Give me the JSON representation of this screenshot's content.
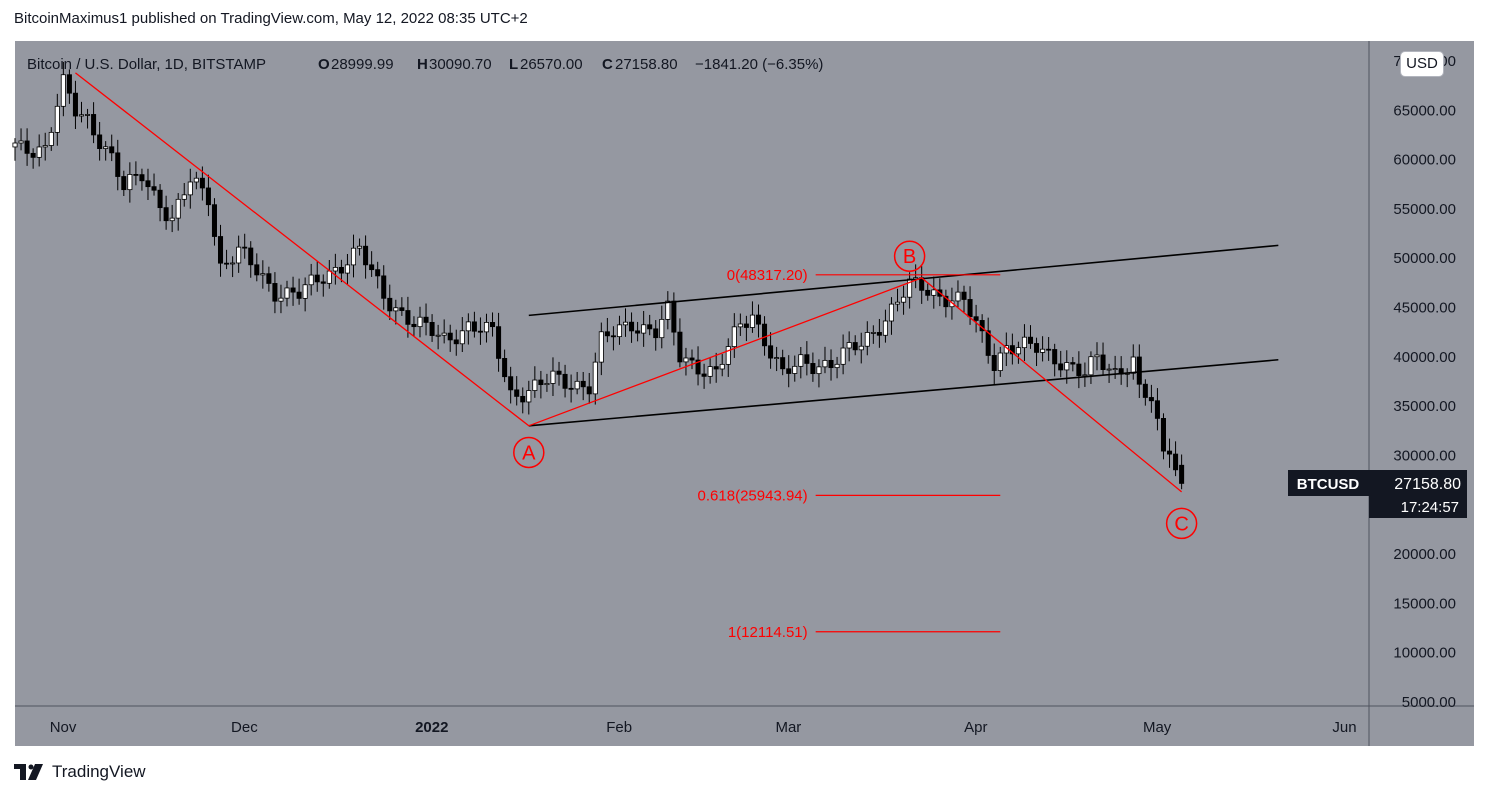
{
  "header": {
    "text": "BitcoinMaximus1 published on TradingView.com, May 12, 2022 08:35 UTC+2"
  },
  "legend": {
    "symbol": "Bitcoin / U.S. Dollar, 1D, BITSTAMP",
    "o_label": "O",
    "o": "28999.99",
    "h_label": "H",
    "h": "30090.70",
    "l_label": "L",
    "l": "26570.00",
    "c_label": "C",
    "c": "27158.80",
    "change": "−1841.20 (−6.35%)"
  },
  "currency_button": "USD",
  "footer": {
    "brand": "TradingView"
  },
  "colors": {
    "background": "#9598a1",
    "up": "#ffffff",
    "down": "#000000",
    "annotation": "#ff0000",
    "channel": "#000000",
    "axis_text": "#131722"
  },
  "chart_data": {
    "type": "candlestick",
    "symbol": "BTCUSD",
    "interval": "1D",
    "last_price": "27158.80",
    "countdown": "17:24:57",
    "y_ticks": [
      "70000.00",
      "65000.00",
      "60000.00",
      "55000.00",
      "50000.00",
      "45000.00",
      "40000.00",
      "35000.00",
      "30000.00",
      "25000.00",
      "20000.00",
      "15000.00",
      "10000.00",
      "5000.00"
    ],
    "ylim": [
      5000,
      70000
    ],
    "x_ticks": [
      {
        "label": "Nov",
        "date": "2021-11-01",
        "bold": false
      },
      {
        "label": "Dec",
        "date": "2021-12-01",
        "bold": false
      },
      {
        "label": "2022",
        "date": "2022-01-01",
        "bold": true
      },
      {
        "label": "Feb",
        "date": "2022-02-01",
        "bold": false
      },
      {
        "label": "Mar",
        "date": "2022-03-01",
        "bold": false
      },
      {
        "label": "Apr",
        "date": "2022-04-01",
        "bold": false
      },
      {
        "label": "May",
        "date": "2022-05-01",
        "bold": false
      },
      {
        "label": "Jun",
        "date": "2022-06-01",
        "bold": false
      }
    ],
    "xlim": [
      "2021-10-31",
      "2022-06-12"
    ],
    "price_waypoints": [
      {
        "date": "2021-10-31",
        "price": 61300
      },
      {
        "date": "2021-11-05",
        "price": 61200
      },
      {
        "date": "2021-11-08",
        "price": 67500
      },
      {
        "date": "2021-11-10",
        "price": 64900
      },
      {
        "date": "2021-11-12",
        "price": 64200
      },
      {
        "date": "2021-11-16",
        "price": 60100
      },
      {
        "date": "2021-11-18",
        "price": 56900
      },
      {
        "date": "2021-11-21",
        "price": 58600
      },
      {
        "date": "2021-11-26",
        "price": 53700
      },
      {
        "date": "2021-11-29",
        "price": 57800
      },
      {
        "date": "2021-12-02",
        "price": 56400
      },
      {
        "date": "2021-12-04",
        "price": 49200
      },
      {
        "date": "2021-12-07",
        "price": 50600
      },
      {
        "date": "2021-12-13",
        "price": 46700
      },
      {
        "date": "2021-12-17",
        "price": 46300
      },
      {
        "date": "2021-12-22",
        "price": 48600
      },
      {
        "date": "2021-12-27",
        "price": 50700
      },
      {
        "date": "2021-12-31",
        "price": 46200
      },
      {
        "date": "2022-01-05",
        "price": 43400
      },
      {
        "date": "2022-01-10",
        "price": 41800
      },
      {
        "date": "2022-01-14",
        "price": 43100
      },
      {
        "date": "2022-01-18",
        "price": 42300
      },
      {
        "date": "2022-01-21",
        "price": 36300
      },
      {
        "date": "2022-01-24",
        "price": 36600
      },
      {
        "date": "2022-01-28",
        "price": 37700
      },
      {
        "date": "2022-02-03",
        "price": 37100
      },
      {
        "date": "2022-02-05",
        "price": 41500
      },
      {
        "date": "2022-02-10",
        "price": 43500
      },
      {
        "date": "2022-02-14",
        "price": 42500
      },
      {
        "date": "2022-02-16",
        "price": 44500
      },
      {
        "date": "2022-02-18",
        "price": 40000
      },
      {
        "date": "2022-02-24",
        "price": 38300
      },
      {
        "date": "2022-02-28",
        "price": 43200
      },
      {
        "date": "2022-03-02",
        "price": 44400
      },
      {
        "date": "2022-03-07",
        "price": 38000
      },
      {
        "date": "2022-03-10",
        "price": 39400
      },
      {
        "date": "2022-03-15",
        "price": 39300
      },
      {
        "date": "2022-03-20",
        "price": 41300
      },
      {
        "date": "2022-03-24",
        "price": 44000
      },
      {
        "date": "2022-03-28",
        "price": 47100
      },
      {
        "date": "2022-03-30",
        "price": 47100
      },
      {
        "date": "2022-04-02",
        "price": 46300
      },
      {
        "date": "2022-04-06",
        "price": 45500
      },
      {
        "date": "2022-04-11",
        "price": 39500
      },
      {
        "date": "2022-04-13",
        "price": 41100
      },
      {
        "date": "2022-04-18",
        "price": 40800
      },
      {
        "date": "2022-04-22",
        "price": 39700
      },
      {
        "date": "2022-04-26",
        "price": 38100
      },
      {
        "date": "2022-04-28",
        "price": 39700
      },
      {
        "date": "2022-05-01",
        "price": 38500
      },
      {
        "date": "2022-05-04",
        "price": 39700
      },
      {
        "date": "2022-05-05",
        "price": 36500
      },
      {
        "date": "2022-05-07",
        "price": 35500
      },
      {
        "date": "2022-05-09",
        "price": 30100
      },
      {
        "date": "2022-05-10",
        "price": 31000
      },
      {
        "date": "2022-05-11",
        "price": 29000
      },
      {
        "date": "2022-05-12",
        "price": 27158.8
      }
    ],
    "last_candle": {
      "date": "2022-05-12",
      "o": 28999.99,
      "h": 30090.7,
      "l": 26570.0,
      "c": 27158.8
    },
    "fibonacci": {
      "anchor_date_start": "2022-03-29",
      "anchor_date_end": "2022-04-12",
      "levels": [
        {
          "label": "0(48317.20)",
          "price": 48317.2
        },
        {
          "label": "0.618(25943.94)",
          "price": 25943.94
        },
        {
          "label": "1(12114.51)",
          "price": 12114.51
        }
      ]
    },
    "wave_path": [
      {
        "date": "2021-11-10",
        "price": 68800
      },
      {
        "date": "2022-01-24",
        "price": 33000
      },
      {
        "date": "2022-03-30",
        "price": 48000
      },
      {
        "date": "2022-05-12",
        "price": 26300
      }
    ],
    "wave_labels": [
      {
        "label": "A",
        "date": "2022-01-24",
        "price": 30300
      },
      {
        "label": "B",
        "date": "2022-03-28",
        "price": 50200
      },
      {
        "label": "C",
        "date": "2022-05-12",
        "price": 23100
      }
    ],
    "channel_lines": [
      {
        "start": {
          "date": "2022-01-24",
          "price": 44200
        },
        "end": {
          "date": "2022-05-28",
          "price": 51300
        }
      },
      {
        "start": {
          "date": "2022-01-24",
          "price": 33000
        },
        "end": {
          "date": "2022-05-28",
          "price": 39700
        }
      }
    ]
  }
}
